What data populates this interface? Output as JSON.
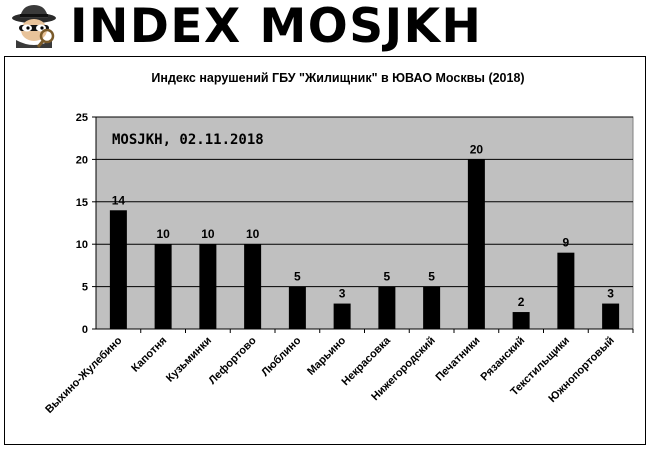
{
  "header": {
    "brand": "INDEX MOSJKH",
    "logo_icon": "spy-detective-icon"
  },
  "chart_data": {
    "type": "bar",
    "title": "Индекс нарушений ГБУ \"Жилищник\" в ЮВАО Москвы (2018)",
    "annotation": "MOSJKH, 02.11.2018",
    "categories": [
      "Выхино-Жулебино",
      "Капотня",
      "Кузьминки",
      "Лефортово",
      "Люблино",
      "Марьино",
      "Некрасовка",
      "Нижегородский",
      "Печатники",
      "Рязанский",
      "Текстильщики",
      "Южнопортовый"
    ],
    "values": [
      14,
      10,
      10,
      10,
      5,
      3,
      5,
      5,
      20,
      2,
      9,
      3
    ],
    "yticks": [
      "0",
      "5",
      "10",
      "15",
      "20",
      "25"
    ],
    "ylim": [
      0,
      25
    ],
    "grid": true,
    "legend": "none",
    "colors": {
      "bar": "#000000",
      "plot_bg": "#c0c0c0",
      "grid": "#000000"
    }
  }
}
